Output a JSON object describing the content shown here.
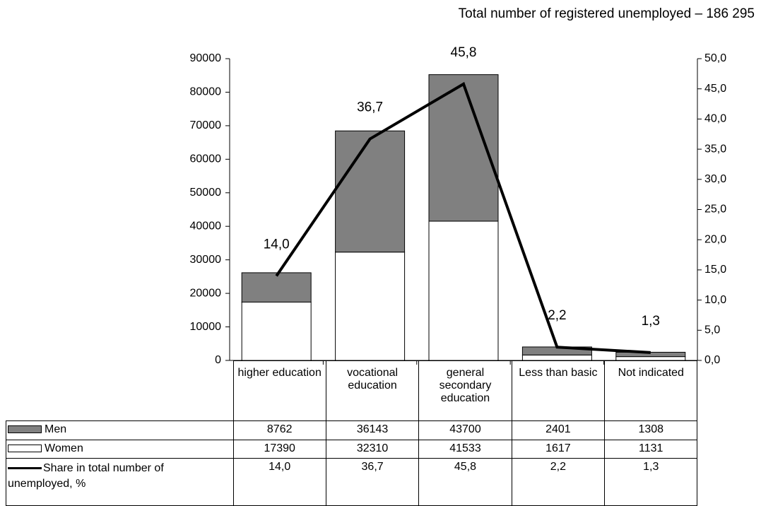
{
  "chart_data": {
    "type": "bar_line_table",
    "title": "Total number of registered unemployed – 186 295",
    "categories": [
      "higher education",
      "vocational education",
      "general secondary education",
      "Less than basic",
      "Not indicated"
    ],
    "series": [
      {
        "name": "Men",
        "type": "bar",
        "color": "#808080",
        "values": [
          8762,
          36143,
          43700,
          2401,
          1308
        ]
      },
      {
        "name": "Women",
        "type": "bar",
        "color": "#ffffff",
        "values": [
          17390,
          32310,
          41533,
          1617,
          1131
        ]
      },
      {
        "name": "Share in total number of unemployed, %",
        "type": "line",
        "axis": "y2",
        "color": "#000000",
        "values": [
          14.0,
          36.7,
          45.8,
          2.2,
          1.3
        ],
        "value_labels": [
          "14,0",
          "36,7",
          "45,8",
          "2,2",
          "1,3"
        ]
      }
    ],
    "ylim": [
      0,
      90000
    ],
    "yticks": [
      0,
      10000,
      20000,
      30000,
      40000,
      50000,
      60000,
      70000,
      80000,
      90000
    ],
    "y2lim": [
      0,
      50
    ],
    "y2ticks": [
      {
        "value": 0,
        "label": "0,0"
      },
      {
        "value": 5,
        "label": "5,0"
      },
      {
        "value": 10,
        "label": "10,0"
      },
      {
        "value": 15,
        "label": "15,0"
      },
      {
        "value": 20,
        "label": "20,0"
      },
      {
        "value": 25,
        "label": "25,0"
      },
      {
        "value": 30,
        "label": "30,0"
      },
      {
        "value": 35,
        "label": "35,0"
      },
      {
        "value": 40,
        "label": "40,0"
      },
      {
        "value": 45,
        "label": "45,0"
      },
      {
        "value": 50,
        "label": "50,0"
      }
    ]
  }
}
